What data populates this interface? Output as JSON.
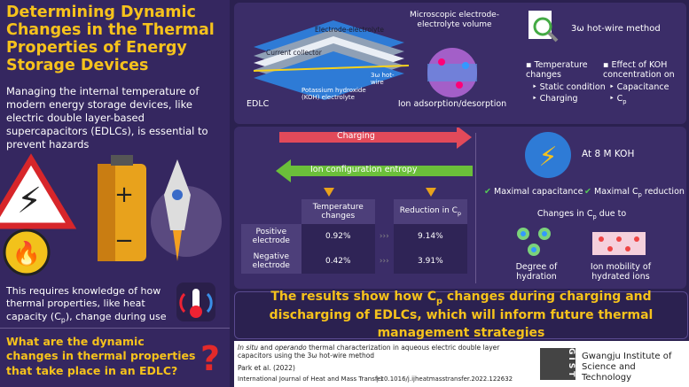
{
  "left": {
    "title": "Determining Dynamic Changes in the Thermal Properties of Energy Storage Devices",
    "intro": "Managing the internal temperature of modern energy storage devices, like electric double layer-based supercapacitors (EDLCs), is essential to prevent hazards",
    "knowledge": [
      "This requires knowledge of how thermal properties, like heat capacity (C",
      "p",
      "), change during use"
    ],
    "question": "What are the dynamic changes in thermal properties that take place in an EDLC?"
  },
  "edlc": {
    "electrode_label": "Electrode-electrolyte",
    "collector_label": "Current collector",
    "hotwire_label": "3ω hot-wire",
    "electrolyte_label": "Potassium hydroxide (KOH) electrolyte",
    "edlc_label": "EDLC",
    "micro_label": "Microscopic electrode-electrolyte volume",
    "ion_label": "Ion adsorption/desorption"
  },
  "method": {
    "title": "3ω hot-wire method",
    "temp_heading": "Temperature changes",
    "temp_items": [
      "Static condition",
      "Charging"
    ],
    "koh_heading": "Effect of KOH concentration on",
    "koh_items": [
      "Capacitance"
    ],
    "koh_cp": [
      "C",
      "p"
    ]
  },
  "process": {
    "charging": "Charging",
    "entropy": "Ion configuration entropy"
  },
  "table": {
    "header": [
      "Temperature changes",
      [
        "Reduction in C",
        "p"
      ]
    ],
    "rows": [
      [
        "Positive electrode",
        "0.92%",
        "9.14%"
      ],
      [
        "Negative electrode",
        "0.42%",
        "3.91%"
      ]
    ]
  },
  "findings": {
    "condition": "At 8 M KOH",
    "check1": "Maximal capacitance",
    "check2": [
      "Maximal C",
      "p",
      " reduction"
    ],
    "changes": [
      "Changes in C",
      "p",
      " due to"
    ],
    "factors": [
      "Degree of hydration",
      "Ion mobility of hydrated ions"
    ]
  },
  "result": [
    "The results show how C",
    "p",
    " changes during charging and discharging of EDLCs, which will inform future thermal management strategies"
  ],
  "footer": {
    "citation": [
      "In situ",
      " and ",
      "operando",
      " thermal characterization in aqueous electric double layer capacitors using the 3ω hot-wire method"
    ],
    "authors": "Park et al. (2022)",
    "journal": "International Journal of Heat and Mass Transfer",
    "doi": "10.1016/j.ijheatmasstransfer.2022.122632",
    "institution": "Gwangju Institute of Science and Technology",
    "logo": "GIST"
  }
}
